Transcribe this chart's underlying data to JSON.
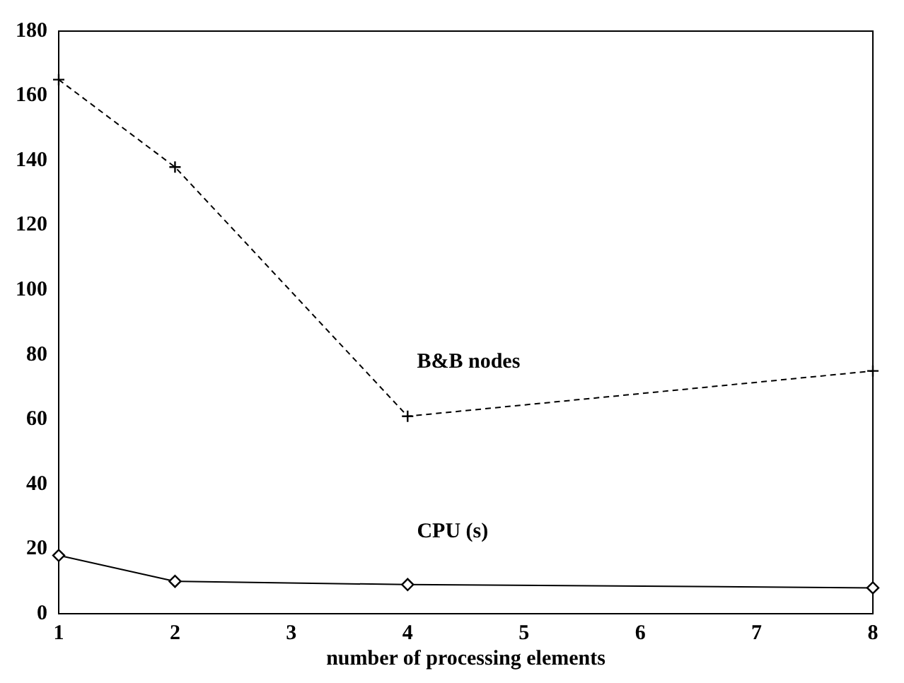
{
  "chart_data": {
    "type": "line",
    "xlabel": "number of processing elements",
    "x": [
      1,
      2,
      4,
      8
    ],
    "series": [
      {
        "name": "B&B nodes",
        "color": "#000000",
        "values": [
          165,
          138,
          61,
          75
        ],
        "marker": "cross",
        "line_style": "dashed"
      },
      {
        "name": "CPU (s)",
        "color": "#000000",
        "values": [
          18,
          10,
          9,
          8
        ],
        "marker": "diamond",
        "line_style": "solid"
      }
    ],
    "xlim": [
      1,
      8
    ],
    "xticks": [
      1,
      2,
      3,
      4,
      5,
      6,
      7,
      8
    ],
    "ylim": [
      0,
      180
    ],
    "yticks": [
      0,
      20,
      40,
      60,
      80,
      100,
      120,
      140,
      160,
      180
    ],
    "grid": false,
    "legend": false
  }
}
